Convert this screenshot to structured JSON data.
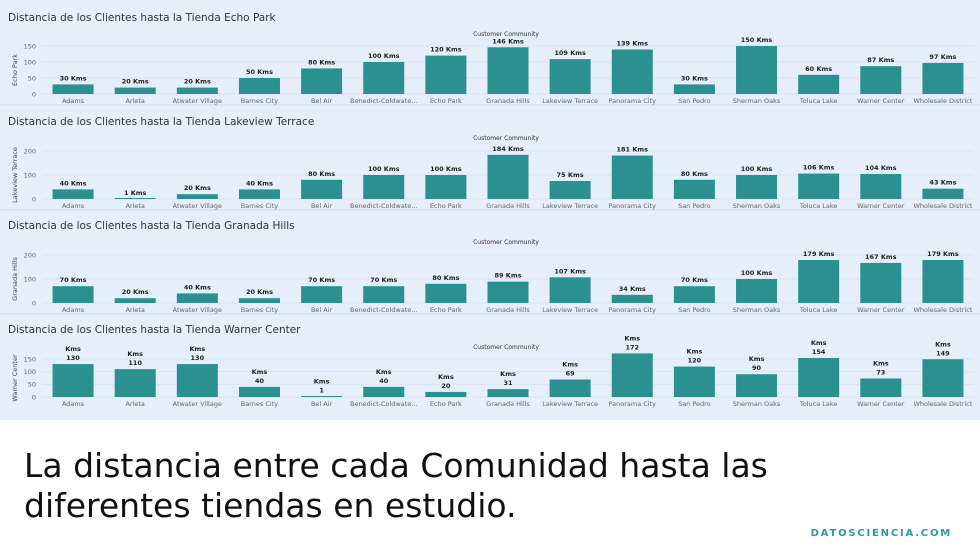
{
  "x_axis_title": "Customer Community",
  "caption": "La distancia entre cada Comunidad hasta las diferentes tiendas en estudio.",
  "brand": "DATOSCIENCIA.COM",
  "colors": {
    "bar": "#2a9090",
    "panel_bg": "#e6eefa",
    "brand": "#2a9ba3"
  },
  "chart_data": [
    {
      "type": "bar",
      "title": "Distancia de los Clientes hasta la Tienda Echo Park",
      "xlabel": "Customer Community",
      "ylabel": "Echo Park",
      "yticks": [
        0,
        50,
        100,
        150
      ],
      "ylim": [
        0,
        150
      ],
      "label_style": "inline",
      "unit": "Kms",
      "categories": [
        "Adams",
        "Arleta",
        "Atwater Village",
        "Barnes City",
        "Bel Air",
        "Benedict-Coldwate...",
        "Echo Park",
        "Granada Hills",
        "Lakeview Terrace",
        "Panorama City",
        "San Pedro",
        "Sherman Oaks",
        "Toluca Lake",
        "Warner Center",
        "Wholesale District"
      ],
      "values": [
        30,
        20,
        20,
        50,
        80,
        100,
        120,
        146,
        109,
        139,
        30,
        150,
        60,
        87,
        97
      ]
    },
    {
      "type": "bar",
      "title": "Distancia de los Clientes hasta la Tienda Lakeview Terrace",
      "xlabel": "Customer Community",
      "ylabel": "Lakeview Terrace",
      "yticks": [
        0,
        100,
        200
      ],
      "ylim": [
        0,
        200
      ],
      "label_style": "inline",
      "unit": "Kms",
      "categories": [
        "Adams",
        "Arleta",
        "Atwater Village",
        "Barnes City",
        "Bel Air",
        "Benedict-Coldwate...",
        "Echo Park",
        "Granada Hills",
        "Lakeview Terrace",
        "Panorama City",
        "San Pedro",
        "Sherman Oaks",
        "Toluca Lake",
        "Warner Center",
        "Wholesale District"
      ],
      "values": [
        40,
        1,
        20,
        40,
        80,
        100,
        100,
        184,
        75,
        181,
        80,
        100,
        106,
        104,
        43
      ]
    },
    {
      "type": "bar",
      "title": "Distancia de los Clientes hasta la Tienda Granada Hills",
      "xlabel": "Customer Community",
      "ylabel": "Granada Hills",
      "yticks": [
        0,
        100,
        200
      ],
      "ylim": [
        0,
        200
      ],
      "label_style": "inline",
      "unit": "Kms",
      "categories": [
        "Adams",
        "Arleta",
        "Atwater Village",
        "Barnes City",
        "Bel Air",
        "Benedict-Coldwate...",
        "Echo Park",
        "Granada Hills",
        "Lakeview Terrace",
        "Panorama City",
        "San Pedro",
        "Sherman Oaks",
        "Toluca Lake",
        "Warner Center",
        "Wholesale District"
      ],
      "values": [
        70,
        20,
        40,
        20,
        70,
        70,
        80,
        89,
        107,
        34,
        70,
        100,
        179,
        167,
        179
      ]
    },
    {
      "type": "bar",
      "title": "Distancia de los Clientes hasta la Tienda Warner Center",
      "xlabel": "Customer Community",
      "ylabel": "Warner Center",
      "yticks": [
        0,
        50,
        100,
        150
      ],
      "ylim": [
        0,
        150
      ],
      "label_style": "stacked",
      "unit": "Kms",
      "categories": [
        "Adams",
        "Arleta",
        "Atwater Village",
        "Barnes City",
        "Bel Air",
        "Benedict-Coldwate...",
        "Echo Park",
        "Granada Hills",
        "Lakeview Terrace",
        "Panorama City",
        "San Pedro",
        "Sherman Oaks",
        "Toluca Lake",
        "Warner Center",
        "Wholesale District"
      ],
      "values": [
        130,
        110,
        130,
        40,
        1,
        40,
        20,
        31,
        69,
        172,
        120,
        90,
        154,
        73,
        149
      ]
    }
  ]
}
